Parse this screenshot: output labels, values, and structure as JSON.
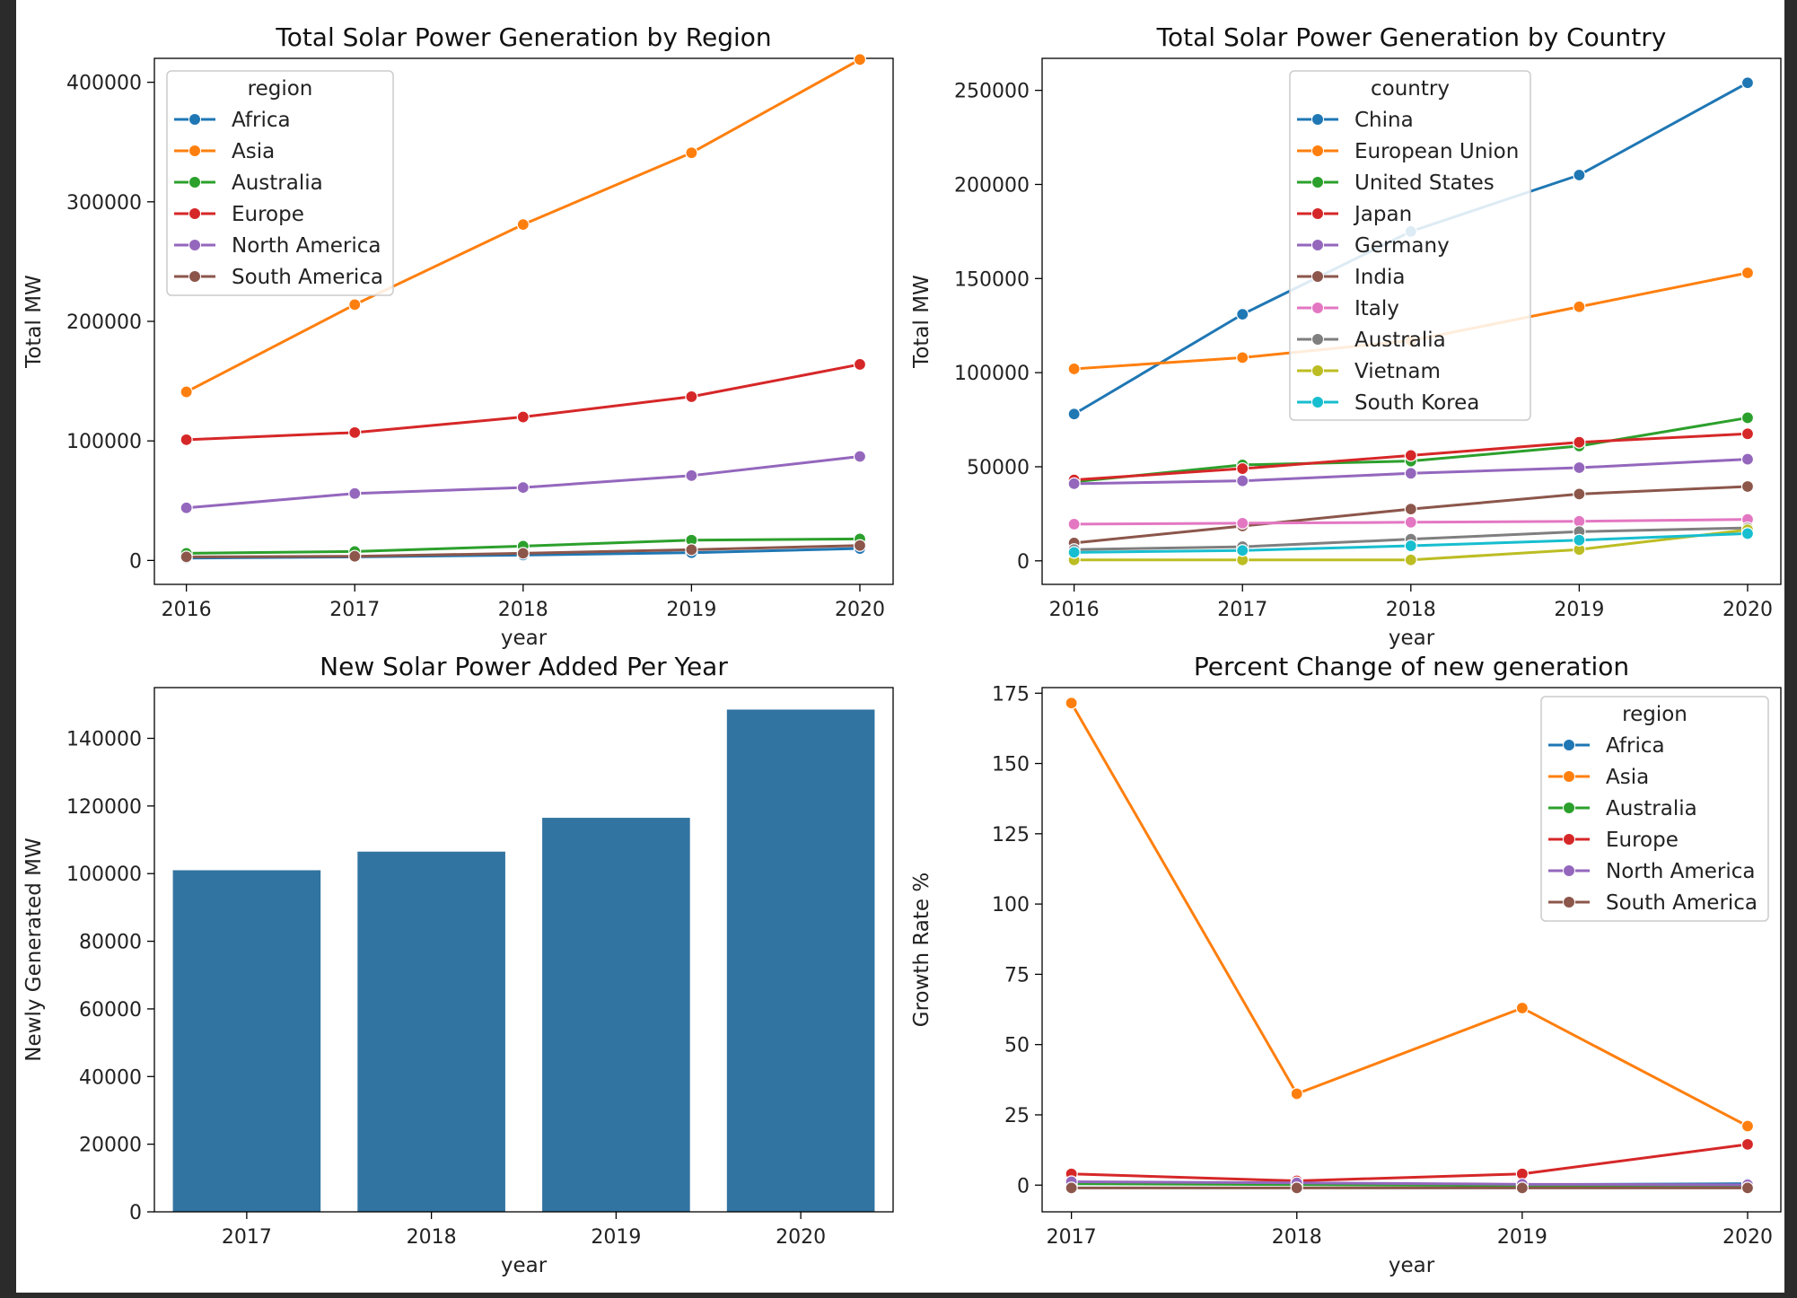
{
  "chart_data": [
    {
      "id": "c1",
      "type": "line",
      "title": "Total Solar Power Generation by Region",
      "xlabel": "year",
      "ylabel": "Total MW",
      "x": [
        2016,
        2017,
        2018,
        2019,
        2020
      ],
      "xlim": [
        2015.81,
        2020.0
      ],
      "ylim": [
        -20000,
        420000
      ],
      "xticks": [
        2016,
        2017,
        2018,
        2019,
        2020
      ],
      "yticks": [
        0,
        100000,
        200000,
        300000,
        400000
      ],
      "legend": {
        "title": "region",
        "position": "top-left"
      },
      "series": [
        {
          "name": "Africa",
          "color": "#1f77b4",
          "values": [
            2000,
            3000,
            4500,
            6500,
            10000
          ]
        },
        {
          "name": "Asia",
          "color": "#ff7f0e",
          "values": [
            141000,
            214000,
            281000,
            341000,
            419000
          ]
        },
        {
          "name": "Australia",
          "color": "#2ca02c",
          "values": [
            6000,
            7500,
            12000,
            17000,
            18000
          ]
        },
        {
          "name": "Europe",
          "color": "#d62728",
          "values": [
            101000,
            107000,
            120000,
            137000,
            164000
          ]
        },
        {
          "name": "North America",
          "color": "#9467bd",
          "values": [
            44000,
            56000,
            61000,
            71000,
            87000
          ]
        },
        {
          "name": "South America",
          "color": "#8c564b",
          "values": [
            3000,
            3500,
            6000,
            9000,
            12500
          ]
        }
      ]
    },
    {
      "id": "c2",
      "type": "line",
      "title": "Total Solar Power Generation by Country",
      "xlabel": "year",
      "ylabel": "Total MW",
      "x": [
        2016,
        2017,
        2018,
        2019,
        2020
      ],
      "xlim": [
        2015.81,
        2020.0
      ],
      "ylim": [
        -12500,
        267000
      ],
      "xticks": [
        2016,
        2017,
        2018,
        2019,
        2020
      ],
      "yticks": [
        0,
        50000,
        100000,
        150000,
        200000,
        250000
      ],
      "legend": {
        "title": "country",
        "position": "top-center"
      },
      "series": [
        {
          "name": "China",
          "color": "#1f77b4",
          "values": [
            78000,
            131000,
            175000,
            205000,
            254000
          ]
        },
        {
          "name": "European Union",
          "color": "#ff7f0e",
          "values": [
            102000,
            108000,
            117000,
            135000,
            153000
          ]
        },
        {
          "name": "United States",
          "color": "#2ca02c",
          "values": [
            42000,
            51000,
            53000,
            61000,
            76000
          ]
        },
        {
          "name": "Japan",
          "color": "#d62728",
          "values": [
            43000,
            49000,
            56000,
            63000,
            67500
          ]
        },
        {
          "name": "Germany",
          "color": "#9467bd",
          "values": [
            41000,
            42500,
            46500,
            49500,
            54000
          ]
        },
        {
          "name": "India",
          "color": "#8c564b",
          "values": [
            9500,
            18500,
            27500,
            35500,
            39500
          ]
        },
        {
          "name": "Italy",
          "color": "#e377c2",
          "values": [
            19500,
            20000,
            20500,
            21000,
            22000
          ]
        },
        {
          "name": "Australia",
          "color": "#7f7f7f",
          "values": [
            6000,
            7500,
            11500,
            15500,
            17500
          ]
        },
        {
          "name": "Vietnam",
          "color": "#bcbd22",
          "values": [
            500,
            500,
            500,
            6000,
            16500
          ]
        },
        {
          "name": "South Korea",
          "color": "#17becf",
          "values": [
            4500,
            5500,
            8000,
            11000,
            14500
          ]
        }
      ]
    },
    {
      "id": "c3",
      "type": "bar",
      "title": "New Solar Power Added Per Year",
      "xlabel": "year",
      "ylabel": "Newly Generated MW",
      "categories": [
        "2017",
        "2018",
        "2019",
        "2020"
      ],
      "values": [
        101000,
        106500,
        116500,
        148500
      ],
      "color": "#3274a1",
      "ylim": [
        0,
        155000
      ],
      "yticks": [
        0,
        20000,
        40000,
        60000,
        80000,
        100000,
        120000,
        140000
      ]
    },
    {
      "id": "c4",
      "type": "line",
      "title": "Percent Change of new generation",
      "xlabel": "year",
      "ylabel": "Growth Rate %",
      "x": [
        2017,
        2018,
        2019,
        2020
      ],
      "xlim": [
        2016.87,
        2020.0
      ],
      "ylim": [
        -9.5,
        177
      ],
      "xticks": [
        2017,
        2018,
        2019,
        2020
      ],
      "yticks": [
        0,
        25,
        50,
        75,
        100,
        125,
        150,
        175
      ],
      "legend": {
        "title": "region",
        "position": "top-right"
      },
      "series": [
        {
          "name": "Africa",
          "color": "#1f77b4",
          "values": [
            0.5,
            0.5,
            0.2,
            0.5
          ]
        },
        {
          "name": "Asia",
          "color": "#ff7f0e",
          "values": [
            171.5,
            32.5,
            63,
            21
          ]
        },
        {
          "name": "Australia",
          "color": "#2ca02c",
          "values": [
            0.5,
            0.2,
            -0.2,
            -0.3
          ]
        },
        {
          "name": "Europe",
          "color": "#d62728",
          "values": [
            4,
            1.5,
            4,
            14.5
          ]
        },
        {
          "name": "North America",
          "color": "#9467bd",
          "values": [
            1.2,
            0.8,
            0.3,
            0.1
          ]
        },
        {
          "name": "South America",
          "color": "#8c564b",
          "values": [
            -1,
            -1,
            -1,
            -1
          ]
        }
      ]
    }
  ]
}
